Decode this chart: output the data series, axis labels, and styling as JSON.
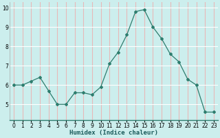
{
  "x": [
    0,
    1,
    2,
    3,
    4,
    5,
    6,
    7,
    8,
    9,
    10,
    11,
    12,
    13,
    14,
    15,
    16,
    17,
    18,
    19,
    20,
    21,
    22,
    23
  ],
  "y": [
    6.0,
    6.0,
    6.2,
    6.4,
    5.7,
    5.0,
    5.0,
    5.6,
    5.6,
    5.5,
    5.9,
    7.1,
    7.7,
    8.6,
    9.8,
    9.9,
    9.0,
    8.4,
    7.6,
    7.2,
    6.3,
    6.0,
    4.6,
    4.6
  ],
  "line_color": "#2e7d6e",
  "marker": "D",
  "marker_size": 2.0,
  "bg_color": "#cceeed",
  "grid_h_color": "#ffffff",
  "grid_v_color": "#e8b8b8",
  "xlabel": "Humidex (Indice chaleur)",
  "ylim": [
    4.2,
    10.3
  ],
  "xlim": [
    -0.5,
    23.5
  ],
  "yticks": [
    5,
    6,
    7,
    8,
    9,
    10
  ],
  "xticks": [
    0,
    1,
    2,
    3,
    4,
    5,
    6,
    7,
    8,
    9,
    10,
    11,
    12,
    13,
    14,
    15,
    16,
    17,
    18,
    19,
    20,
    21,
    22,
    23
  ],
  "xlabel_fontsize": 6.5,
  "tick_fontsize": 5.5
}
